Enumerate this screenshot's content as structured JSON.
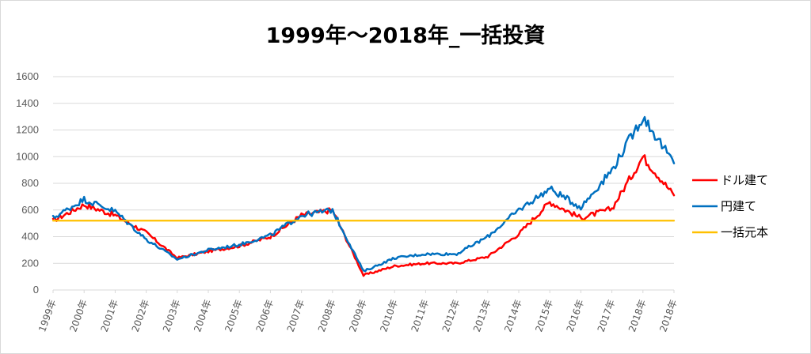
{
  "chart_data": {
    "type": "line",
    "title": "1999年～2018年_一括投資",
    "xlabel": "",
    "ylabel": "",
    "ylim": [
      0,
      1600
    ],
    "yticks": [
      "0",
      "200",
      "400",
      "600",
      "800",
      "1000",
      "1200",
      "1400",
      "1600"
    ],
    "categories": [
      "1999年",
      "2000年",
      "2001年",
      "2002年",
      "2003年",
      "2004年",
      "2005年",
      "2006年",
      "2007年",
      "2008年",
      "2009年",
      "2010年",
      "2011年",
      "2012年",
      "2013年",
      "2014年",
      "2015年",
      "2016年",
      "2017年",
      "2018年",
      "2018年"
    ],
    "grid": true,
    "legend_position": "right",
    "series": [
      {
        "name": "ドル建て",
        "color": "#ff0000",
        "values": [
          520,
          640,
          560,
          430,
          240,
          290,
          330,
          400,
          560,
          600,
          110,
          180,
          200,
          200,
          250,
          420,
          660,
          540,
          610,
          1000,
          710
        ]
      },
      {
        "name": "円建て",
        "color": "#0070c0",
        "values": [
          540,
          680,
          590,
          380,
          230,
          300,
          340,
          410,
          560,
          600,
          140,
          240,
          270,
          270,
          400,
          600,
          760,
          620,
          900,
          1300,
          950
        ]
      },
      {
        "name": "一括元本",
        "color": "#ffc000",
        "values": [
          520,
          520,
          520,
          520,
          520,
          520,
          520,
          520,
          520,
          520,
          520,
          520,
          520,
          520,
          520,
          520,
          520,
          520,
          520,
          520,
          520
        ]
      }
    ]
  }
}
